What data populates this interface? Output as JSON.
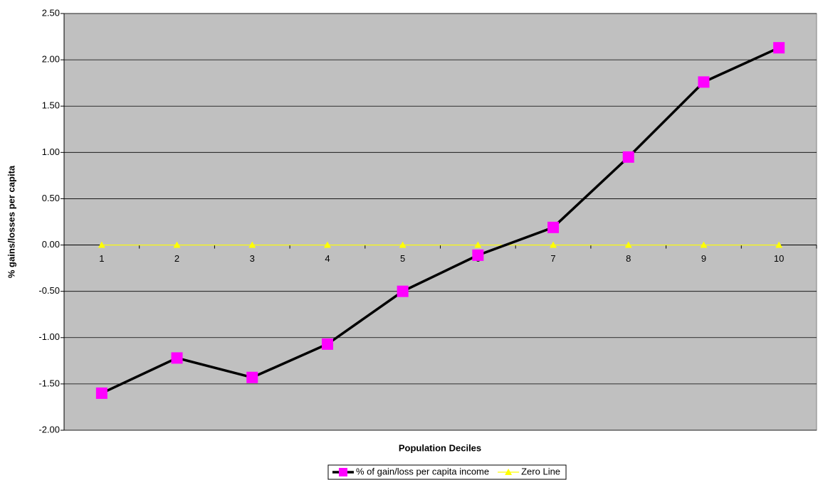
{
  "chart_data": {
    "type": "line",
    "x_label": "Population Deciles",
    "y_label": "% gains/losses per capita",
    "categories": [
      "1",
      "2",
      "3",
      "4",
      "5",
      "6",
      "7",
      "8",
      "9",
      "10"
    ],
    "series": [
      {
        "name": "% of gain/loss per capita income",
        "color": "#000000",
        "marker_color": "#ff00ff",
        "marker": "square",
        "values": [
          -1.6,
          -1.22,
          -1.43,
          -1.07,
          -0.5,
          -0.11,
          0.19,
          0.95,
          1.76,
          2.13
        ]
      },
      {
        "name": "Zero Line",
        "color": "#ffff00",
        "marker_color": "#ffff00",
        "marker": "triangle",
        "values": [
          0,
          0,
          0,
          0,
          0,
          0,
          0,
          0,
          0,
          0
        ]
      }
    ],
    "ylim": [
      -2,
      2.5
    ],
    "yticks": [
      {
        "value": -2,
        "label": "-2.00"
      },
      {
        "value": -1.5,
        "label": "-1.50"
      },
      {
        "value": -1,
        "label": "-1.00"
      },
      {
        "value": -0.5,
        "label": "-0.50"
      },
      {
        "value": 0,
        "label": "0.00"
      },
      {
        "value": 0.5,
        "label": "0.50"
      },
      {
        "value": 1,
        "label": "1.00"
      },
      {
        "value": 1.5,
        "label": "1.50"
      },
      {
        "value": 2,
        "label": "2.00"
      },
      {
        "value": 2.5,
        "label": "2.50"
      }
    ],
    "grid": true,
    "plot_background": "#c0c0c0",
    "legend": "bottom"
  }
}
